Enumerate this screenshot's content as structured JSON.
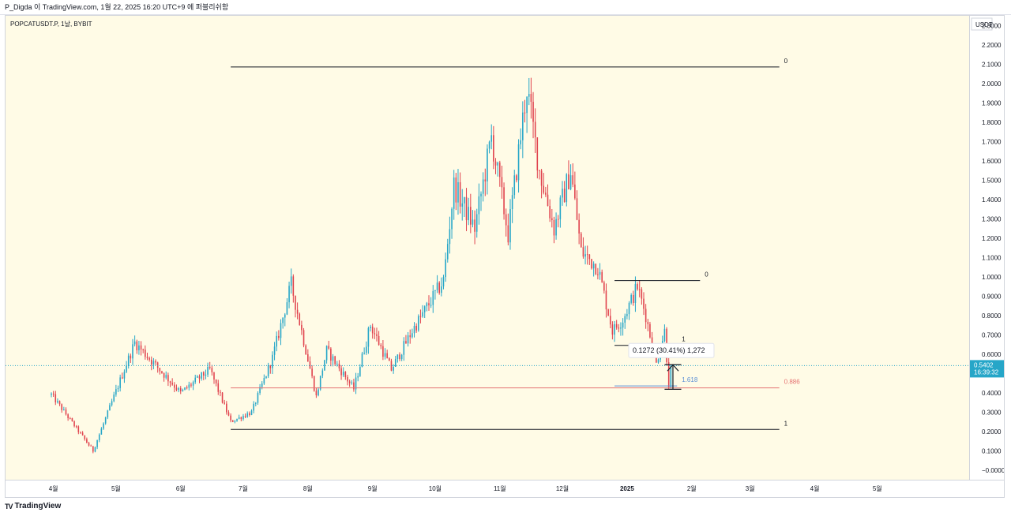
{
  "header": {
    "author_line": "P_Digda 이 TradingView.com, 1월 22, 2025 16:20 UTC+9 에 퍼블리쉬함"
  },
  "footer": {
    "brand": "TradingView",
    "brand_mark": "TV"
  },
  "colors": {
    "up": "#26a6c8",
    "down": "#e0424d",
    "background": "#fffbe6",
    "fib_red": "#e57373",
    "fib_blue": "#5b8fd6",
    "price_tag": "#26a6c8"
  },
  "chart_data": {
    "type": "candlestick",
    "symbol_label": "POPCATUSDT.P, 1날, BYBIT",
    "currency_label": "USDT",
    "ylim": [
      -0.05,
      2.35
    ],
    "y_ticks": [
      "2.3000",
      "2.2000",
      "2.1000",
      "2.0000",
      "1.9000",
      "1.8000",
      "1.7000",
      "1.6000",
      "1.5000",
      "1.4000",
      "1.3000",
      "1.2000",
      "1.1000",
      "1.0000",
      "0.9000",
      "0.8000",
      "0.7000",
      "0.6000",
      "0.5000",
      "0.4000",
      "0.3000",
      "0.2000",
      "0.1000",
      "−0.0000"
    ],
    "x_ticks": [
      "4월",
      "5월",
      "6월",
      "7월",
      "8월",
      "9월",
      "10월",
      "11월",
      "12월",
      "2025",
      "2월",
      "3월",
      "4월",
      "5월"
    ],
    "current_price": {
      "value": 0.5402,
      "label": "0.5402",
      "timer": "16:39:32"
    },
    "key_points": [
      {
        "date": "2024-03-31",
        "price": 0.39
      },
      {
        "date": "2024-04-20",
        "price": 0.1
      },
      {
        "date": "2024-05-10",
        "price": 0.66
      },
      {
        "date": "2024-06-01",
        "price": 0.4
      },
      {
        "date": "2024-06-15",
        "price": 0.52
      },
      {
        "date": "2024-06-25",
        "price": 0.25
      },
      {
        "date": "2024-07-05",
        "price": 0.3
      },
      {
        "date": "2024-07-15",
        "price": 0.58
      },
      {
        "date": "2024-07-24",
        "price": 0.96
      },
      {
        "date": "2024-08-05",
        "price": 0.38
      },
      {
        "date": "2024-08-10",
        "price": 0.62
      },
      {
        "date": "2024-08-23",
        "price": 0.42
      },
      {
        "date": "2024-08-31",
        "price": 0.75
      },
      {
        "date": "2024-09-10",
        "price": 0.52
      },
      {
        "date": "2024-09-20",
        "price": 0.72
      },
      {
        "date": "2024-10-05",
        "price": 0.98
      },
      {
        "date": "2024-10-10",
        "price": 1.47
      },
      {
        "date": "2024-10-20",
        "price": 1.25
      },
      {
        "date": "2024-10-28",
        "price": 1.72
      },
      {
        "date": "2024-11-05",
        "price": 1.22
      },
      {
        "date": "2024-11-14",
        "price": 1.98
      },
      {
        "date": "2024-11-20",
        "price": 1.55
      },
      {
        "date": "2024-11-27",
        "price": 1.25
      },
      {
        "date": "2024-12-05",
        "price": 1.55
      },
      {
        "date": "2024-12-10",
        "price": 1.13
      },
      {
        "date": "2024-12-18",
        "price": 1.05
      },
      {
        "date": "2024-12-25",
        "price": 0.72
      },
      {
        "date": "2024-12-30",
        "price": 0.78
      },
      {
        "date": "2025-01-06",
        "price": 0.95
      },
      {
        "date": "2025-01-10",
        "price": 0.8
      },
      {
        "date": "2025-01-15",
        "price": 0.55
      },
      {
        "date": "2025-01-19",
        "price": 0.72
      },
      {
        "date": "2025-01-21",
        "price": 0.44
      },
      {
        "date": "2025-01-22",
        "price": 0.54
      }
    ],
    "fib_levels": [
      {
        "label": "0",
        "price": 2.085,
        "date_from": "2024-06-25",
        "date_to": "2025-03-15",
        "color": "#131722"
      },
      {
        "label": "0.886",
        "price": 0.425,
        "date_from": "2024-06-25",
        "date_to": "2025-03-15",
        "color": "#e57373"
      },
      {
        "label": "1",
        "price": 0.21,
        "date_from": "2024-06-25",
        "date_to": "2025-03-15",
        "color": "#131722"
      },
      {
        "label": "0",
        "price": 0.98,
        "date_from": "2024-12-26",
        "date_to": "2025-02-05",
        "color": "#131722"
      },
      {
        "label": "1",
        "price": 0.645,
        "date_from": "2024-12-26",
        "date_to": "2025-01-25",
        "color": "#131722"
      },
      {
        "label": "1.618",
        "price": 0.435,
        "date_from": "2024-12-26",
        "date_to": "2025-01-25",
        "color": "#5b8fd6"
      }
    ],
    "measure": {
      "label": "0.1272 (30.41%) 1,272",
      "from_price": 0.418,
      "to_price": 0.545,
      "date_from": "2025-01-19",
      "date_to": "2025-01-27"
    }
  }
}
